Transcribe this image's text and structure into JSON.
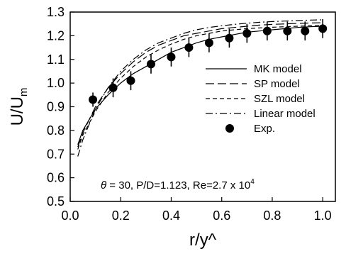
{
  "chart_data": {
    "type": "line",
    "xlabel": "r/y^",
    "ylabel": "U/U",
    "ylabel_sub": "m",
    "xlim": [
      0.0,
      1.05
    ],
    "ylim": [
      0.5,
      1.3
    ],
    "x_ticks": [
      0.0,
      0.2,
      0.4,
      0.6,
      0.8,
      1.0
    ],
    "x_tick_labels": [
      "0.0",
      "0.2",
      "0.4",
      "0.6",
      "0.8",
      "1.0"
    ],
    "y_ticks": [
      0.5,
      0.6,
      0.7,
      0.8,
      0.9,
      1.0,
      1.1,
      1.2,
      1.3
    ],
    "y_tick_labels": [
      "0.5",
      "0.6",
      "0.7",
      "0.8",
      "0.9",
      "1.0",
      "1.1",
      "1.2",
      "1.3"
    ],
    "grid": false,
    "legend_placement": "center-right",
    "series": [
      {
        "name": "MK model",
        "style": "solid",
        "x": [
          0.03,
          0.05,
          0.1,
          0.15,
          0.2,
          0.25,
          0.3,
          0.35,
          0.4,
          0.45,
          0.5,
          0.55,
          0.6,
          0.65,
          0.7,
          0.75,
          0.8,
          0.85,
          0.9,
          0.95,
          1.0
        ],
        "y": [
          0.74,
          0.8,
          0.89,
          0.95,
          1.0,
          1.04,
          1.07,
          1.1,
          1.13,
          1.15,
          1.17,
          1.185,
          1.195,
          1.205,
          1.215,
          1.22,
          1.225,
          1.23,
          1.235,
          1.238,
          1.24
        ]
      },
      {
        "name": "SP model",
        "style": "long-dash",
        "x": [
          0.03,
          0.05,
          0.1,
          0.15,
          0.2,
          0.25,
          0.3,
          0.35,
          0.4,
          0.45,
          0.5,
          0.55,
          0.6,
          0.65,
          0.7,
          0.75,
          0.8,
          0.85,
          0.9,
          0.95,
          1.0
        ],
        "y": [
          0.73,
          0.79,
          0.9,
          0.98,
          1.04,
          1.09,
          1.13,
          1.16,
          1.18,
          1.2,
          1.21,
          1.22,
          1.23,
          1.235,
          1.24,
          1.245,
          1.248,
          1.25,
          1.252,
          1.254,
          1.255
        ]
      },
      {
        "name": "SZL model",
        "style": "short-dash",
        "x": [
          0.03,
          0.05,
          0.1,
          0.15,
          0.2,
          0.25,
          0.3,
          0.35,
          0.4,
          0.45,
          0.5,
          0.55,
          0.6,
          0.65,
          0.7,
          0.75,
          0.8,
          0.85,
          0.9,
          0.95,
          1.0
        ],
        "y": [
          0.72,
          0.78,
          0.88,
          0.96,
          1.02,
          1.07,
          1.11,
          1.14,
          1.165,
          1.185,
          1.2,
          1.21,
          1.22,
          1.225,
          1.23,
          1.233,
          1.236,
          1.238,
          1.24,
          1.242,
          1.243
        ]
      },
      {
        "name": "Linear model",
        "style": "dash-dot",
        "x": [
          0.03,
          0.05,
          0.1,
          0.15,
          0.2,
          0.25,
          0.3,
          0.35,
          0.4,
          0.45,
          0.5,
          0.55,
          0.6,
          0.65,
          0.7,
          0.75,
          0.8,
          0.85,
          0.9,
          0.95,
          1.0
        ],
        "y": [
          0.69,
          0.76,
          0.89,
          0.98,
          1.05,
          1.1,
          1.14,
          1.17,
          1.19,
          1.21,
          1.225,
          1.235,
          1.242,
          1.248,
          1.253,
          1.257,
          1.26,
          1.262,
          1.264,
          1.266,
          1.267
        ]
      },
      {
        "name": "Exp.",
        "style": "markers",
        "x": [
          0.09,
          0.17,
          0.24,
          0.32,
          0.4,
          0.47,
          0.55,
          0.63,
          0.7,
          0.78,
          0.86,
          0.93,
          1.0
        ],
        "y": [
          0.93,
          0.98,
          1.01,
          1.08,
          1.11,
          1.15,
          1.17,
          1.19,
          1.21,
          1.22,
          1.22,
          1.22,
          1.23
        ],
        "error": [
          0.03,
          0.04,
          0.04,
          0.04,
          0.04,
          0.04,
          0.04,
          0.04,
          0.04,
          0.04,
          0.04,
          0.04,
          0.04
        ]
      }
    ],
    "annotation": {
      "theta_symbol": "θ",
      "text": " = 30,  P/D=1.123, Re=2.7 x 10",
      "exponent": "4"
    }
  }
}
